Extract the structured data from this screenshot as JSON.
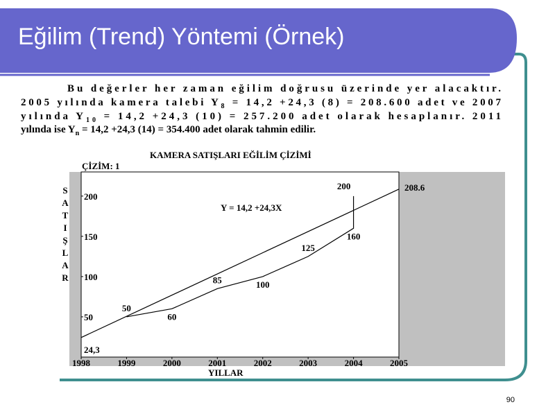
{
  "title": "Eğilim (Trend) Yöntemi (Örnek)",
  "paragraph": [
    [
      "Bu değerler her zaman eğilim doğrusu üzerinde yer alacaktır."
    ],
    [
      "2005 yılında kamera talebi Y",
      "8",
      " = 14,2 +24,3 (8) = 208.600 adet ve 2007"
    ],
    [
      "yılında Y",
      "10",
      " = 14,2 +24,3 (10) = 257.200 adet olarak hesaplanır. 2011"
    ],
    [
      "yılında ise Y",
      "n",
      " = 14,2 +24,3 (14) = 354.400 adet olarak tahmin edilir."
    ]
  ],
  "chart_data": {
    "type": "line",
    "title": "KAMERA SATIŞLARI EĞİLİM ÇİZİMİ",
    "caption": "ÇİZİM: 1",
    "xlabel": "YILLAR",
    "ylabel": "SATIŞLAR",
    "annotation": "Y = 14,2 +24,3X",
    "xlim": [
      1998,
      2005
    ],
    "xticks": [
      1998,
      1999,
      2000,
      2001,
      2002,
      2003,
      2004,
      2005
    ],
    "ylim": [
      0,
      230
    ],
    "yticks": [
      50,
      100,
      150,
      200
    ],
    "series": [
      {
        "color": "#000000",
        "x": [
          1999,
          2000,
          2001,
          2002,
          2003,
          2004,
          2004
        ],
        "values": [
          50,
          60,
          85,
          100,
          125,
          160,
          200
        ]
      },
      {
        "color": "#000000",
        "x": [
          1998,
          2005
        ],
        "values": [
          24.3,
          208.6
        ],
        "value_labels": [
          "24,3",
          "208.6"
        ]
      }
    ]
  },
  "slide_number": "90"
}
